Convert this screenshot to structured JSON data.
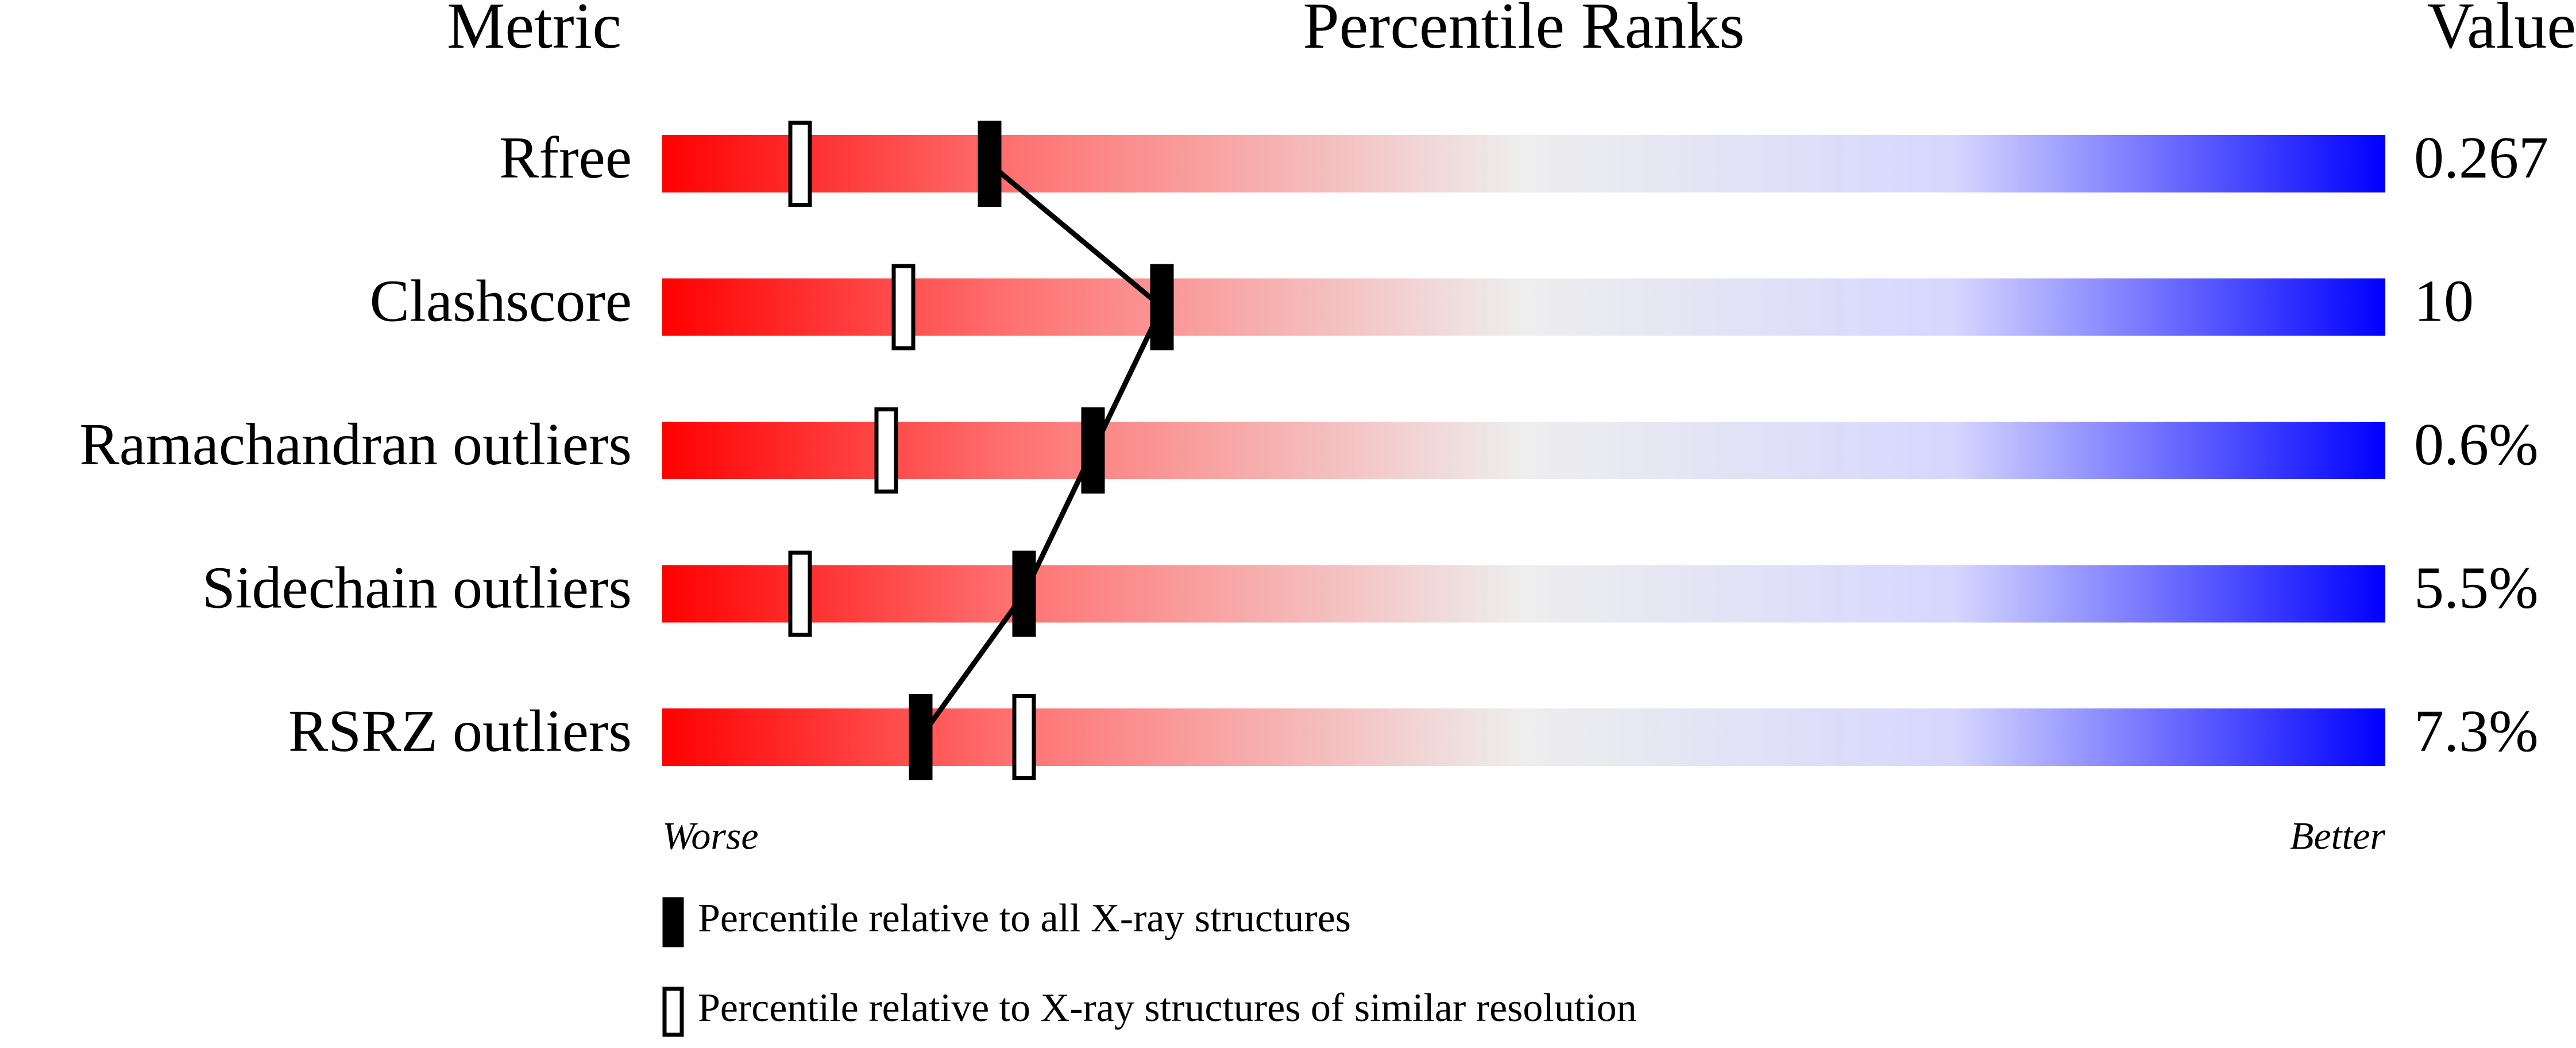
{
  "chart_data": {
    "type": "percentile-slider",
    "headers": [
      "Metric",
      "Percentile Ranks",
      "Value"
    ],
    "categories": [
      "Rfree",
      "Clashscore",
      "Ramachandran outliers",
      "Sidechain outliers",
      "RSRZ outliers"
    ],
    "values": [
      0.267,
      10,
      0.6,
      5.5,
      7.3
    ],
    "value_labels": [
      "0.267",
      "10",
      "0.6%",
      "5.5%",
      "7.3%"
    ],
    "series": [
      {
        "name": "Percentile relative to all X-ray structures",
        "color": "#000000",
        "values": [
          19,
          29,
          25,
          21,
          15
        ]
      },
      {
        "name": "Percentile relative to X-ray structures of similar resolution",
        "color": "#ffffff",
        "values": [
          8,
          14,
          13,
          8,
          21
        ]
      }
    ],
    "xlim": [
      0,
      100
    ],
    "axis_labels": [
      "Worse",
      "Better"
    ]
  }
}
